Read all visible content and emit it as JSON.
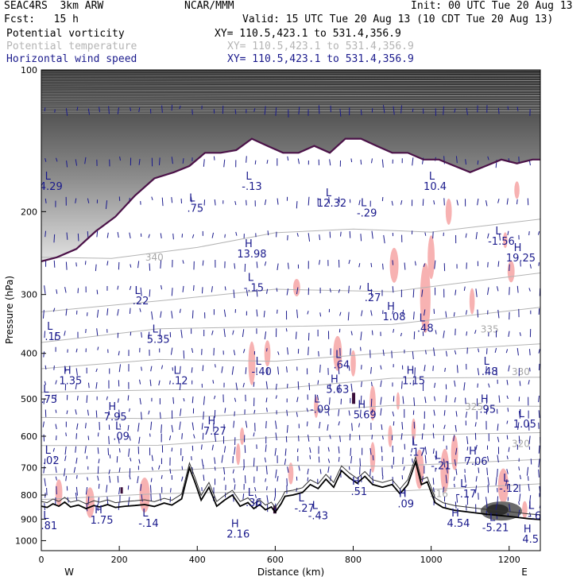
{
  "header": {
    "model": "SEAC4RS  3km ARW",
    "org": "NCAR/MMM",
    "init": "Init: 00 UTC Tue 20 Aug 13",
    "fcst": "Fcst:   15 h",
    "valid": "Valid: 15 UTC Tue 20 Aug 13 (10 CDT Tue 20 Aug 13)",
    "fields": [
      {
        "name": "Potential vorticity",
        "xy": "XY= 110.5,423.1 to 531.4,356.9",
        "color": "#000000"
      },
      {
        "name": "Potential temperature",
        "xy": "XY= 110.5,423.1 to 531.4,356.9",
        "color": "#b4b4b4"
      },
      {
        "name": "Horizontal wind speed",
        "xy": "XY= 110.5,423.1 to 531.4,356.9",
        "color": "#1a1a8c"
      }
    ]
  },
  "chart_data": {
    "type": "cross-section",
    "xlabel": "Distance (km)",
    "ylabel": "Pressure (hPa)",
    "xlim": [
      0,
      1280
    ],
    "ylim": [
      1050,
      100
    ],
    "x_ticks": [
      0,
      200,
      400,
      600,
      800,
      1000,
      1200
    ],
    "y_ticks": [
      100,
      200,
      300,
      400,
      500,
      600,
      700,
      800,
      900,
      1000
    ],
    "y_scale": "log-pressure",
    "end_labels": {
      "left": "W",
      "right": "E"
    },
    "theta_contours": [
      {
        "label": "340",
        "x": 290,
        "p": 250
      },
      {
        "label": "335",
        "x": 1150,
        "p": 356
      },
      {
        "label": "330",
        "x": 1230,
        "p": 438
      },
      {
        "label": "325",
        "x": 1110,
        "p": 520
      },
      {
        "label": "320",
        "x": 1230,
        "p": 622
      },
      {
        "label": "316",
        "x": 1020,
        "p": 795
      }
    ],
    "extrema": [
      {
        "type": "L",
        "value": "4.29",
        "x": 25,
        "p": 180
      },
      {
        "type": "L",
        "value": ".75",
        "x": 395,
        "p": 200
      },
      {
        "type": "L",
        "value": "-.13",
        "x": 540,
        "p": 180
      },
      {
        "type": "L",
        "value": "12.32",
        "x": 745,
        "p": 195
      },
      {
        "type": "L",
        "value": "-.29",
        "x": 835,
        "p": 205
      },
      {
        "type": "L",
        "value": "10.4",
        "x": 1010,
        "p": 180
      },
      {
        "type": "L",
        "value": "-1.56",
        "x": 1180,
        "p": 235
      },
      {
        "type": "H",
        "value": "19.25",
        "x": 1230,
        "p": 255
      },
      {
        "type": "H",
        "value": "13.98",
        "x": 540,
        "p": 250
      },
      {
        "type": "L",
        "value": "-.15",
        "x": 545,
        "p": 295
      },
      {
        "type": "L",
        "value": ".22",
        "x": 255,
        "p": 315
      },
      {
        "type": "L",
        "value": ".27",
        "x": 850,
        "p": 310
      },
      {
        "type": "H",
        "value": "1.08",
        "x": 905,
        "p": 340
      },
      {
        "type": "L",
        "value": ".48",
        "x": 985,
        "p": 360
      },
      {
        "type": "L",
        "value": ".15",
        "x": 30,
        "p": 375
      },
      {
        "type": "L",
        "value": "5.35",
        "x": 300,
        "p": 380
      },
      {
        "type": "L",
        "value": "-.40",
        "x": 565,
        "p": 445
      },
      {
        "type": "L",
        "value": ".64",
        "x": 770,
        "p": 430
      },
      {
        "type": "H",
        "value": "1.35",
        "x": 75,
        "p": 465
      },
      {
        "type": "L",
        "value": ".12",
        "x": 355,
        "p": 465
      },
      {
        "type": "H",
        "value": "5.63",
        "x": 760,
        "p": 485
      },
      {
        "type": "H",
        "value": "1.15",
        "x": 955,
        "p": 465
      },
      {
        "type": "L",
        "value": ".48",
        "x": 1150,
        "p": 445
      },
      {
        "type": "L",
        "value": ".75",
        "x": 20,
        "p": 510
      },
      {
        "type": "H",
        "value": "7.95",
        "x": 190,
        "p": 555
      },
      {
        "type": "L",
        "value": "-.09",
        "x": 715,
        "p": 535
      },
      {
        "type": "H",
        "value": "5.69",
        "x": 830,
        "p": 550
      },
      {
        "type": "H",
        "value": ".95",
        "x": 1145,
        "p": 535
      },
      {
        "type": "L",
        "value": ".09",
        "x": 205,
        "p": 610
      },
      {
        "type": "H",
        "value": "7.27",
        "x": 445,
        "p": 595
      },
      {
        "type": "L",
        "value": "1.05",
        "x": 1240,
        "p": 575
      },
      {
        "type": "L",
        "value": ".02",
        "x": 25,
        "p": 688
      },
      {
        "type": "L",
        "value": ".17",
        "x": 965,
        "p": 660
      },
      {
        "type": "L",
        "value": "-.21",
        "x": 1025,
        "p": 705
      },
      {
        "type": "H",
        "value": "7.06",
        "x": 1115,
        "p": 690
      },
      {
        "type": "L",
        "value": "-.12",
        "x": 1200,
        "p": 787
      },
      {
        "type": "L",
        "value": "-.17",
        "x": 1090,
        "p": 810
      },
      {
        "type": "L",
        "value": ".36",
        "x": 545,
        "p": 845
      },
      {
        "type": "L",
        "value": "-.27",
        "x": 675,
        "p": 868
      },
      {
        "type": "L",
        "value": "-.43",
        "x": 710,
        "p": 900
      },
      {
        "type": "H",
        "value": ".09",
        "x": 935,
        "p": 850
      },
      {
        "type": "H",
        "value": ".51",
        "x": 815,
        "p": 800
      },
      {
        "type": "L",
        "value": ".81",
        "x": 20,
        "p": 945
      },
      {
        "type": "H",
        "value": "1.75",
        "x": 155,
        "p": 920
      },
      {
        "type": "L",
        "value": "-.14",
        "x": 275,
        "p": 935
      },
      {
        "type": "H",
        "value": "2.16",
        "x": 505,
        "p": 985
      },
      {
        "type": "H",
        "value": "4.54",
        "x": 1070,
        "p": 935
      },
      {
        "type": "L",
        "value": "-5.21",
        "x": 1165,
        "p": 955
      },
      {
        "type": "H",
        "value": "4.5",
        "x": 1255,
        "p": 1010
      },
      {
        "type": "L",
        "value": "-.6",
        "x": 1265,
        "p": 900
      }
    ]
  },
  "colors": {
    "pv_fill_gray": "#4a4a4a",
    "pv_positive": "#f7b2b2",
    "pv_strong": "#3a0e3a",
    "theta": "#b4b4b4",
    "wind": "#1a1a8c",
    "terrain": "#000000",
    "tropopause": "#4b1248"
  }
}
